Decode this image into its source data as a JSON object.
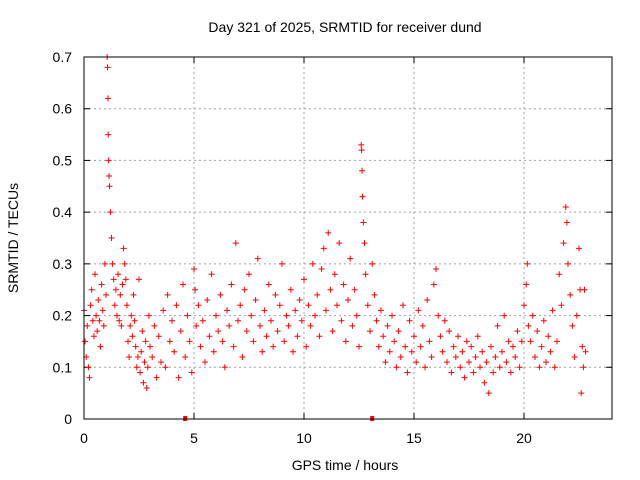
{
  "chart_data": {
    "type": "scatter",
    "title": "Day 321 of 2025, SRMTID for receiver dund",
    "xlabel": "GPS time / hours",
    "ylabel": "SRMTID / TECUs",
    "xlim": [
      0,
      24
    ],
    "ylim": [
      0,
      0.7
    ],
    "xticks": [
      0,
      5,
      10,
      15,
      20
    ],
    "xtick_labels": [
      "0",
      "5",
      "10",
      "15",
      "20"
    ],
    "yticks": [
      0,
      0.1,
      0.2,
      0.3,
      0.4,
      0.5,
      0.6,
      0.7
    ],
    "ytick_labels": [
      "0",
      "0.1",
      "0.2",
      "0.3",
      "0.4",
      "0.5",
      "0.6",
      "0.7"
    ],
    "grid": true,
    "marker": "+",
    "color": "#ff0000",
    "zero_markers": [
      4.6,
      13.1
    ],
    "series": [
      {
        "name": "SRMTID",
        "points": [
          [
            0.0,
            0.21
          ],
          [
            0.05,
            0.15
          ],
          [
            0.1,
            0.12
          ],
          [
            0.15,
            0.18
          ],
          [
            0.2,
            0.1
          ],
          [
            0.25,
            0.08
          ],
          [
            0.3,
            0.22
          ],
          [
            0.35,
            0.25
          ],
          [
            0.4,
            0.19
          ],
          [
            0.45,
            0.16
          ],
          [
            0.5,
            0.28
          ],
          [
            0.55,
            0.2
          ],
          [
            0.6,
            0.17
          ],
          [
            0.65,
            0.23
          ],
          [
            0.7,
            0.19
          ],
          [
            0.75,
            0.14
          ],
          [
            0.8,
            0.26
          ],
          [
            0.85,
            0.21
          ],
          [
            0.9,
            0.18
          ],
          [
            0.95,
            0.3
          ],
          [
            1.0,
            0.24
          ],
          [
            1.05,
            0.7
          ],
          [
            1.07,
            0.68
          ],
          [
            1.09,
            0.62
          ],
          [
            1.1,
            0.55
          ],
          [
            1.12,
            0.5
          ],
          [
            1.14,
            0.47
          ],
          [
            1.16,
            0.45
          ],
          [
            1.2,
            0.4
          ],
          [
            1.25,
            0.35
          ],
          [
            1.3,
            0.3
          ],
          [
            1.35,
            0.27
          ],
          [
            1.4,
            0.22
          ],
          [
            1.45,
            0.25
          ],
          [
            1.5,
            0.2
          ],
          [
            1.55,
            0.28
          ],
          [
            1.6,
            0.19
          ],
          [
            1.65,
            0.24
          ],
          [
            1.7,
            0.18
          ],
          [
            1.75,
            0.26
          ],
          [
            1.8,
            0.33
          ],
          [
            1.85,
            0.3
          ],
          [
            1.9,
            0.27
          ],
          [
            1.95,
            0.22
          ],
          [
            2.0,
            0.15
          ],
          [
            2.05,
            0.12
          ],
          [
            2.1,
            0.18
          ],
          [
            2.15,
            0.2
          ],
          [
            2.2,
            0.16
          ],
          [
            2.25,
            0.24
          ],
          [
            2.3,
            0.19
          ],
          [
            2.35,
            0.14
          ],
          [
            2.4,
            0.1
          ],
          [
            2.45,
            0.12
          ],
          [
            2.5,
            0.27
          ],
          [
            2.55,
            0.09
          ],
          [
            2.6,
            0.13
          ],
          [
            2.65,
            0.17
          ],
          [
            2.7,
            0.07
          ],
          [
            2.75,
            0.11
          ],
          [
            2.8,
            0.15
          ],
          [
            2.85,
            0.06
          ],
          [
            2.9,
            0.1
          ],
          [
            2.95,
            0.2
          ],
          [
            3.0,
            0.14
          ],
          [
            3.1,
            0.12
          ],
          [
            3.2,
            0.18
          ],
          [
            3.3,
            0.08
          ],
          [
            3.4,
            0.16
          ],
          [
            3.5,
            0.11
          ],
          [
            3.6,
            0.21
          ],
          [
            3.7,
            0.1
          ],
          [
            3.8,
            0.24
          ],
          [
            3.9,
            0.15
          ],
          [
            4.0,
            0.19
          ],
          [
            4.1,
            0.13
          ],
          [
            4.2,
            0.22
          ],
          [
            4.3,
            0.08
          ],
          [
            4.4,
            0.17
          ],
          [
            4.5,
            0.26
          ],
          [
            4.6,
            0.12
          ],
          [
            4.7,
            0.2
          ],
          [
            4.8,
            0.15
          ],
          [
            4.9,
            0.09
          ],
          [
            5.0,
            0.29
          ],
          [
            5.05,
            0.25
          ],
          [
            5.1,
            0.18
          ],
          [
            5.2,
            0.22
          ],
          [
            5.3,
            0.14
          ],
          [
            5.4,
            0.19
          ],
          [
            5.5,
            0.11
          ],
          [
            5.6,
            0.23
          ],
          [
            5.7,
            0.16
          ],
          [
            5.8,
            0.28
          ],
          [
            5.9,
            0.13
          ],
          [
            6.0,
            0.2
          ],
          [
            6.1,
            0.17
          ],
          [
            6.2,
            0.24
          ],
          [
            6.3,
            0.15
          ],
          [
            6.4,
            0.1
          ],
          [
            6.5,
            0.21
          ],
          [
            6.6,
            0.18
          ],
          [
            6.7,
            0.26
          ],
          [
            6.8,
            0.14
          ],
          [
            6.9,
            0.34
          ],
          [
            7.0,
            0.19
          ],
          [
            7.1,
            0.22
          ],
          [
            7.2,
            0.12
          ],
          [
            7.3,
            0.25
          ],
          [
            7.4,
            0.17
          ],
          [
            7.5,
            0.28
          ],
          [
            7.6,
            0.2
          ],
          [
            7.7,
            0.15
          ],
          [
            7.8,
            0.23
          ],
          [
            7.9,
            0.31
          ],
          [
            8.0,
            0.18
          ],
          [
            8.1,
            0.13
          ],
          [
            8.2,
            0.21
          ],
          [
            8.3,
            0.16
          ],
          [
            8.4,
            0.26
          ],
          [
            8.5,
            0.19
          ],
          [
            8.6,
            0.14
          ],
          [
            8.7,
            0.24
          ],
          [
            8.8,
            0.17
          ],
          [
            8.9,
            0.22
          ],
          [
            9.0,
            0.3
          ],
          [
            9.1,
            0.15
          ],
          [
            9.2,
            0.2
          ],
          [
            9.3,
            0.18
          ],
          [
            9.4,
            0.25
          ],
          [
            9.5,
            0.13
          ],
          [
            9.6,
            0.21
          ],
          [
            9.7,
            0.16
          ],
          [
            9.8,
            0.23
          ],
          [
            9.9,
            0.19
          ],
          [
            10.0,
            0.27
          ],
          [
            10.1,
            0.14
          ],
          [
            10.2,
            0.22
          ],
          [
            10.3,
            0.18
          ],
          [
            10.4,
            0.3
          ],
          [
            10.5,
            0.2
          ],
          [
            10.6,
            0.24
          ],
          [
            10.7,
            0.16
          ],
          [
            10.8,
            0.29
          ],
          [
            10.9,
            0.33
          ],
          [
            11.0,
            0.21
          ],
          [
            11.1,
            0.36
          ],
          [
            11.2,
            0.25
          ],
          [
            11.3,
            0.17
          ],
          [
            11.4,
            0.28
          ],
          [
            11.5,
            0.22
          ],
          [
            11.6,
            0.34
          ],
          [
            11.7,
            0.19
          ],
          [
            11.8,
            0.26
          ],
          [
            11.9,
            0.15
          ],
          [
            12.0,
            0.23
          ],
          [
            12.1,
            0.31
          ],
          [
            12.2,
            0.18
          ],
          [
            12.3,
            0.25
          ],
          [
            12.4,
            0.2
          ],
          [
            12.5,
            0.14
          ],
          [
            12.6,
            0.53
          ],
          [
            12.62,
            0.52
          ],
          [
            12.64,
            0.48
          ],
          [
            12.66,
            0.43
          ],
          [
            12.7,
            0.38
          ],
          [
            12.75,
            0.34
          ],
          [
            12.8,
            0.28
          ],
          [
            12.9,
            0.22
          ],
          [
            13.0,
            0.17
          ],
          [
            13.1,
            0.3
          ],
          [
            13.2,
            0.24
          ],
          [
            13.3,
            0.19
          ],
          [
            13.4,
            0.14
          ],
          [
            13.5,
            0.21
          ],
          [
            13.6,
            0.16
          ],
          [
            13.7,
            0.11
          ],
          [
            13.8,
            0.18
          ],
          [
            13.9,
            0.13
          ],
          [
            14.0,
            0.2
          ],
          [
            14.1,
            0.15
          ],
          [
            14.2,
            0.1
          ],
          [
            14.3,
            0.17
          ],
          [
            14.4,
            0.12
          ],
          [
            14.5,
            0.22
          ],
          [
            14.6,
            0.14
          ],
          [
            14.7,
            0.09
          ],
          [
            14.8,
            0.19
          ],
          [
            14.9,
            0.13
          ],
          [
            15.0,
            0.16
          ],
          [
            15.1,
            0.11
          ],
          [
            15.2,
            0.21
          ],
          [
            15.3,
            0.14
          ],
          [
            15.4,
            0.18
          ],
          [
            15.5,
            0.1
          ],
          [
            15.6,
            0.23
          ],
          [
            15.7,
            0.15
          ],
          [
            15.8,
            0.12
          ],
          [
            15.9,
            0.26
          ],
          [
            16.0,
            0.29
          ],
          [
            16.1,
            0.2
          ],
          [
            16.2,
            0.16
          ],
          [
            16.3,
            0.13
          ],
          [
            16.4,
            0.19
          ],
          [
            16.5,
            0.11
          ],
          [
            16.6,
            0.17
          ],
          [
            16.7,
            0.09
          ],
          [
            16.8,
            0.14
          ],
          [
            16.9,
            0.12
          ],
          [
            17.0,
            0.16
          ],
          [
            17.1,
            0.1
          ],
          [
            17.2,
            0.13
          ],
          [
            17.3,
            0.08
          ],
          [
            17.4,
            0.15
          ],
          [
            17.5,
            0.11
          ],
          [
            17.6,
            0.14
          ],
          [
            17.7,
            0.09
          ],
          [
            17.8,
            0.12
          ],
          [
            17.9,
            0.16
          ],
          [
            18.0,
            0.1
          ],
          [
            18.1,
            0.13
          ],
          [
            18.2,
            0.07
          ],
          [
            18.3,
            0.11
          ],
          [
            18.4,
            0.05
          ],
          [
            18.5,
            0.14
          ],
          [
            18.6,
            0.09
          ],
          [
            18.7,
            0.12
          ],
          [
            18.8,
            0.18
          ],
          [
            18.9,
            0.1
          ],
          [
            19.0,
            0.13
          ],
          [
            19.1,
            0.2
          ],
          [
            19.2,
            0.11
          ],
          [
            19.3,
            0.15
          ],
          [
            19.4,
            0.09
          ],
          [
            19.5,
            0.14
          ],
          [
            19.6,
            0.12
          ],
          [
            19.7,
            0.17
          ],
          [
            19.8,
            0.1
          ],
          [
            19.9,
            0.15
          ],
          [
            20.0,
            0.22
          ],
          [
            20.1,
            0.26
          ],
          [
            20.15,
            0.3
          ],
          [
            20.2,
            0.18
          ],
          [
            20.3,
            0.15
          ],
          [
            20.4,
            0.2
          ],
          [
            20.5,
            0.12
          ],
          [
            20.6,
            0.17
          ],
          [
            20.7,
            0.1
          ],
          [
            20.8,
            0.14
          ],
          [
            20.9,
            0.19
          ],
          [
            21.0,
            0.11
          ],
          [
            21.1,
            0.16
          ],
          [
            21.2,
            0.13
          ],
          [
            21.3,
            0.21
          ],
          [
            21.4,
            0.1
          ],
          [
            21.5,
            0.15
          ],
          [
            21.6,
            0.28
          ],
          [
            21.7,
            0.22
          ],
          [
            21.8,
            0.34
          ],
          [
            21.9,
            0.41
          ],
          [
            21.95,
            0.38
          ],
          [
            22.0,
            0.3
          ],
          [
            22.1,
            0.24
          ],
          [
            22.2,
            0.18
          ],
          [
            22.3,
            0.12
          ],
          [
            22.4,
            0.2
          ],
          [
            22.5,
            0.33
          ],
          [
            22.55,
            0.25
          ],
          [
            22.6,
            0.05
          ],
          [
            22.65,
            0.14
          ],
          [
            22.7,
            0.1
          ],
          [
            22.75,
            0.25
          ],
          [
            22.8,
            0.13
          ]
        ]
      }
    ]
  }
}
